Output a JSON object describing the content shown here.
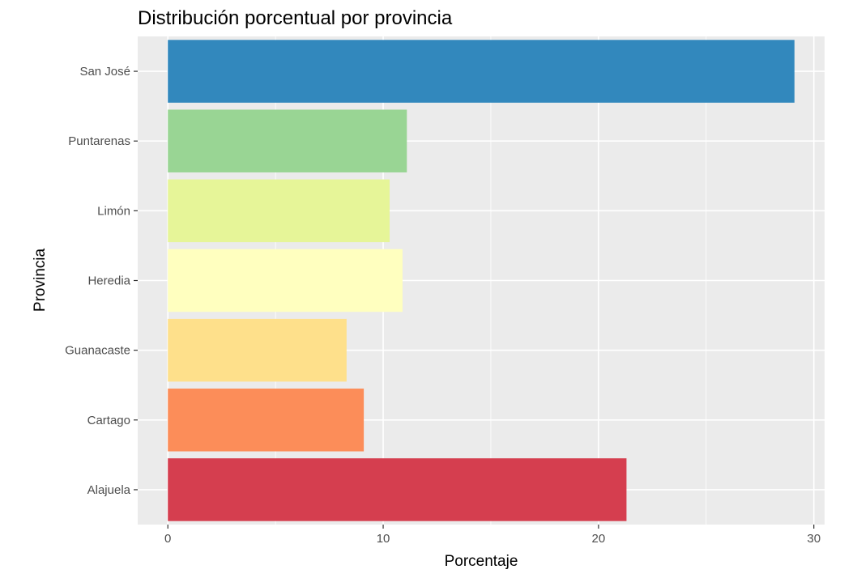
{
  "chart_data": {
    "type": "bar",
    "orientation": "horizontal",
    "title": "Distribución porcentual por provincia",
    "xlabel": "Porcentaje",
    "ylabel": "Provincia",
    "categories": [
      "San José",
      "Puntarenas",
      "Limón",
      "Heredia",
      "Guanacaste",
      "Cartago",
      "Alajuela"
    ],
    "values": [
      29.1,
      11.1,
      10.3,
      10.9,
      8.3,
      9.1,
      21.3
    ],
    "colors": [
      "#3288bd",
      "#99d594",
      "#e6f598",
      "#ffffbf",
      "#fee08b",
      "#fc8d59",
      "#d53e4f"
    ],
    "xlim": [
      -1.4,
      30.5
    ],
    "xticks": [
      0,
      10,
      20,
      30
    ],
    "grid": true,
    "panel_background": "#ebebeb",
    "legend": "none"
  }
}
